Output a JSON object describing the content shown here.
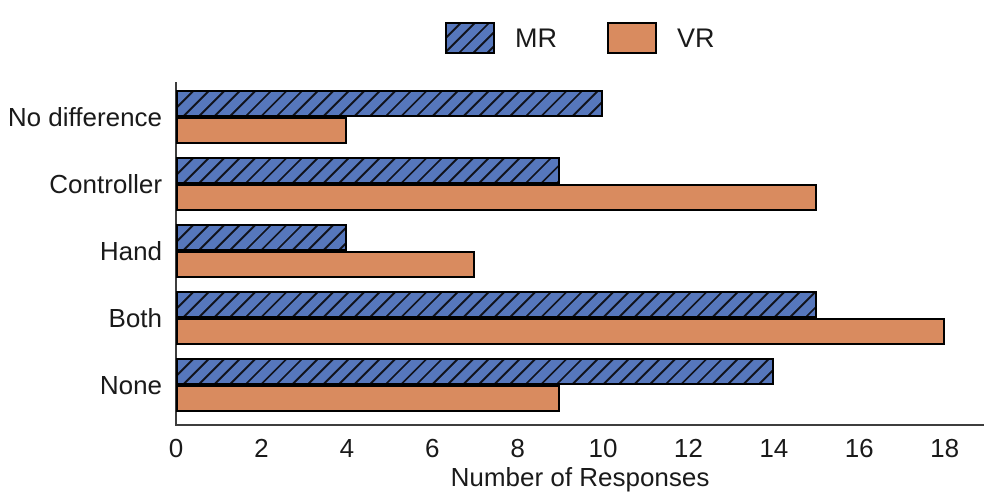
{
  "chart_data": {
    "type": "bar",
    "orientation": "horizontal",
    "title": "",
    "xlabel": "Number of Responses",
    "ylabel": "",
    "categories": [
      "No difference",
      "Controller",
      "Hand",
      "Both",
      "None"
    ],
    "series": [
      {
        "name": "MR",
        "color": "#5677BC",
        "hatch": "///",
        "edge_color": "#000000",
        "values": [
          10,
          9,
          4,
          15,
          14
        ]
      },
      {
        "name": "VR",
        "color": "#D98B5F",
        "hatch": "",
        "edge_color": "#000000",
        "values": [
          4,
          15,
          7,
          18,
          9
        ]
      }
    ],
    "x_ticks": [
      0,
      2,
      4,
      6,
      8,
      10,
      12,
      14,
      16,
      18
    ],
    "xlim": [
      0,
      18.9
    ],
    "grid": false,
    "legend_position": "top-center",
    "spines": [
      "left",
      "bottom"
    ]
  },
  "colors": {
    "mr_fill": "#5677BC",
    "vr_fill": "#D98B5F",
    "bar_edge": "#000000",
    "axis_line": "#3d3d3d",
    "text": "#1a1a1a",
    "background": "#ffffff"
  }
}
